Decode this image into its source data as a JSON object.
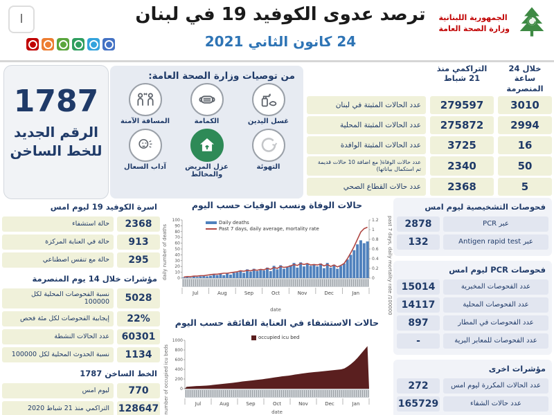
{
  "header": {
    "title": "ترصد عدوى الكوفيد 19 في لبنان",
    "date": "24 كانون الثاني 2021",
    "page_marker": "ا",
    "logo_line1": "الجمهورية اللبنانية",
    "logo_line2": "وزارة الصحة العامة",
    "social_colors": [
      "#c00000",
      "#ed7d31",
      "#5aa53c",
      "#2f9e5f",
      "#33a3dc",
      "#4472c4"
    ]
  },
  "hotline_panel": {
    "number": "1787",
    "label": "الرقم الجديد للخط الساخن"
  },
  "recommendations": {
    "header": "من توصيات وزارة الصحة العامة:",
    "items": [
      {
        "label": "غسل اليدين",
        "icon": "handwash-icon"
      },
      {
        "label": "الكمامة",
        "icon": "mask-icon"
      },
      {
        "label": "المسافة الآمنة",
        "icon": "distance-icon"
      },
      {
        "label": "التهوئة",
        "icon": "ventilation-icon"
      },
      {
        "label": "عزل المريض والمخالط",
        "icon": "isolation-icon"
      },
      {
        "label": "آداب السعال",
        "icon": "cough-icon"
      }
    ]
  },
  "cases_table": {
    "col_cumulative": "التراكمي منذ 21 شباط",
    "col_24h": "خلال 24 ساعة المنصرمة",
    "rows": [
      {
        "label": "عدد الحالات المثبتة في لبنان",
        "cumulative": "279597",
        "last24h": "3010"
      },
      {
        "label": "عدد الحالات المثبتة المحلية",
        "cumulative": "275872",
        "last24h": "2994"
      },
      {
        "label": "عدد الحالات المثبتة الوافدة",
        "cumulative": "3725",
        "last24h": "16"
      },
      {
        "label": "عدد حالات الوفاة( مع اضافة 10 حالات قديمة تم استكمال بياناتها)",
        "cumulative": "2340",
        "last24h": "50"
      },
      {
        "label": "عدد حالات القطاع الصحي",
        "cumulative": "2368",
        "last24h": "5"
      }
    ]
  },
  "left_stats": {
    "sections": [
      {
        "header": "اسرة الكوفيد 19 ليوم امس",
        "rows": [
          {
            "value": "2368",
            "label": "حالة استشفاء"
          },
          {
            "value": "913",
            "label": "حالة في العناية المركزة"
          },
          {
            "value": "295",
            "label": "حالة مع تنفس اصطناعي"
          }
        ]
      },
      {
        "header": "مؤشرات خلال 14 يوم المنصرمة",
        "rows": [
          {
            "value": "5028",
            "label": "نسبة الفحوصات المحلية لكل 100000"
          },
          {
            "value": "22%",
            "label": "إيجابية الفحوصات لكل مئة فحص"
          },
          {
            "value": "60301",
            "label": "عدد الحالات النشطة"
          },
          {
            "value": "1134",
            "label": "نسبة الحدوث المحلية لكل 100000"
          }
        ]
      },
      {
        "header": "الخط الساخن 1787",
        "rows": [
          {
            "value": "770",
            "label": "ليوم امس"
          },
          {
            "value": "128647",
            "label": "التراكمي منذ 21 شباط 2020"
          }
        ]
      }
    ]
  },
  "right_stats": {
    "sections": [
      {
        "header": "فحوصات التشخيصية ليوم امس",
        "rows": [
          {
            "value": "2878",
            "label": "عبر PCR"
          },
          {
            "value": "132",
            "label": "عبر Antigen rapid test"
          }
        ]
      },
      {
        "header": "فحوصات PCR ليوم امس",
        "rows": [
          {
            "value": "15014",
            "label": "عدد الفحوصات المخبرية"
          },
          {
            "value": "14117",
            "label": "عدد الفحوصات المحلية"
          },
          {
            "value": "897",
            "label": "عدد الفحوصات في المطار"
          },
          {
            "value": "-",
            "label": "عدد الفحوصات للمعابر البرية"
          }
        ]
      },
      {
        "header": "مؤشرات اخرى",
        "rows": [
          {
            "value": "272",
            "label": "عدد الحالات المكررة  ليوم امس"
          },
          {
            "value": "165729",
            "label": "عدد حالات الشفاء"
          }
        ]
      }
    ]
  },
  "chart_data": [
    {
      "type": "bar",
      "title": "حالات الوفاة ونسب الوفيات حسب اليوم",
      "legend": [
        "Daily deaths",
        "Past 7 days, daily average, mortality rate"
      ],
      "ylabel_left": "daily number of deaths",
      "ylabel_right": "past 7 days, daily mortality rate /100000",
      "xlabel": "date",
      "x_months": [
        "Jul",
        "Aug",
        "Sep",
        "Oct",
        "Nov",
        "Dec",
        "Jan"
      ],
      "ylim_left": [
        0,
        100
      ],
      "ylim_right": [
        0,
        1.2
      ],
      "yticks_left": [
        0,
        10,
        20,
        30,
        40,
        50,
        60,
        70,
        80,
        90,
        100
      ],
      "yticks_right": [
        0,
        0.2,
        0.4,
        0.6,
        0.8,
        1,
        1.2
      ],
      "bar_color": "#4f81bd",
      "line_color": "#b04844",
      "bar_values": [
        1,
        2,
        1,
        3,
        2,
        3,
        4,
        3,
        4,
        6,
        5,
        7,
        5,
        8,
        6,
        9,
        10,
        13,
        9,
        15,
        11,
        16,
        12,
        14,
        13,
        18,
        12,
        21,
        15,
        22,
        16,
        19,
        22,
        26,
        18,
        27,
        20,
        25,
        21,
        23,
        20,
        25,
        17,
        26,
        18,
        23,
        16,
        21,
        25,
        32,
        40,
        48,
        58,
        65,
        60,
        63
      ],
      "line_values": [
        0.02,
        0.03,
        0.03,
        0.04,
        0.04,
        0.05,
        0.05,
        0.06,
        0.07,
        0.08,
        0.08,
        0.09,
        0.1,
        0.1,
        0.11,
        0.12,
        0.13,
        0.15,
        0.14,
        0.16,
        0.15,
        0.17,
        0.16,
        0.18,
        0.17,
        0.2,
        0.18,
        0.22,
        0.2,
        0.24,
        0.22,
        0.23,
        0.25,
        0.28,
        0.26,
        0.3,
        0.28,
        0.3,
        0.27,
        0.28,
        0.27,
        0.29,
        0.25,
        0.28,
        0.24,
        0.27,
        0.23,
        0.26,
        0.3,
        0.4,
        0.52,
        0.65,
        0.8,
        0.95,
        1.02,
        1.05
      ]
    },
    {
      "type": "area",
      "title": "حالات الاستشفاء في العناية الفائقة حسب اليوم",
      "legend": [
        "occupied icu bed"
      ],
      "ylabel": "number of occupied icu beds",
      "xlabel": "date",
      "x_months": [
        "Jul",
        "Aug",
        "Sep",
        "Oct",
        "Nov",
        "Dec",
        "Jan"
      ],
      "ylim": [
        0,
        1000
      ],
      "yticks": [
        0,
        200,
        400,
        600,
        800,
        1000
      ],
      "area_color": "#5a1f1f",
      "values": [
        40,
        45,
        50,
        55,
        58,
        60,
        65,
        70,
        78,
        85,
        92,
        100,
        108,
        115,
        122,
        130,
        140,
        150,
        158,
        165,
        172,
        180,
        188,
        195,
        205,
        215,
        225,
        235,
        245,
        255,
        262,
        270,
        280,
        292,
        302,
        312,
        322,
        330,
        338,
        345,
        350,
        358,
        365,
        372,
        378,
        385,
        392,
        400,
        420,
        460,
        510,
        570,
        640,
        720,
        800,
        880
      ]
    }
  ],
  "colors": {
    "navy": "#1f3a68",
    "date_blue": "#2e74b5",
    "row_yellow": "#f0f1da",
    "row_blue": "#e2e6f0",
    "logo_red": "#c00000",
    "cedar_green": "#3e8a44"
  }
}
